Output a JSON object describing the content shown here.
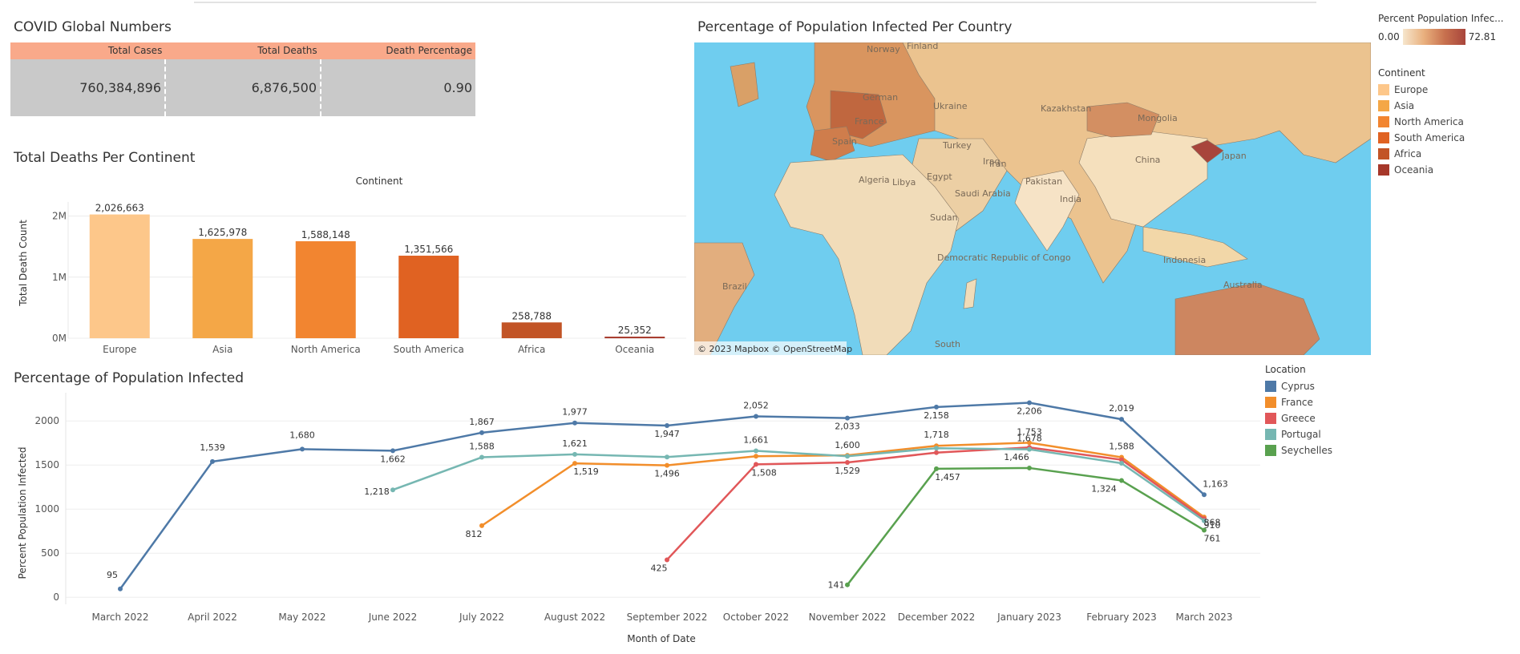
{
  "global_numbers": {
    "title": "COVID Global Numbers",
    "headers": [
      "Total Cases",
      "Total Deaths",
      "Death Percentage"
    ],
    "values": [
      "760,384,896",
      "6,876,500",
      "0.90"
    ]
  },
  "map": {
    "title": "Percentage of Population Infected Per Country",
    "legend_title": "Percent Population Infec...",
    "range_min": "0.00",
    "range_max": "72.81",
    "labels": [
      "Norway",
      "Finland",
      "German",
      "France",
      "Spain",
      "Ukraine",
      "Turkey",
      "Iraq",
      "Iran",
      "Kazakhstan",
      "Mongolia",
      "China",
      "Japan",
      "Pakistan",
      "India",
      "Saudi Arabia",
      "Egypt",
      "Libya",
      "Algeria",
      "Sudan",
      "Democratic Republic of Congo",
      "Brazil",
      "Indonesia",
      "Australia",
      "South"
    ],
    "attribution": "© 2023 Mapbox  © OpenStreetMap",
    "colors": {
      "ocean": "#6fcdef",
      "land": "#ead2ad",
      "low": "#f2dfbd",
      "high": "#a8453c"
    }
  },
  "continent_legend": {
    "title": "Continent",
    "items": [
      {
        "label": "Europe",
        "color": "#fdc78a"
      },
      {
        "label": "Asia",
        "color": "#f4a747"
      },
      {
        "label": "North America",
        "color": "#f28530"
      },
      {
        "label": "South America",
        "color": "#e06222"
      },
      {
        "label": "Africa",
        "color": "#c25426"
      },
      {
        "label": "Oceania",
        "color": "#a6382a"
      }
    ]
  },
  "location_legend": {
    "title": "Location",
    "items": [
      {
        "label": "Cyprus",
        "color": "#4e79a7"
      },
      {
        "label": "France",
        "color": "#f28e2b"
      },
      {
        "label": "Greece",
        "color": "#e15759"
      },
      {
        "label": "Portugal",
        "color": "#76b7b2"
      },
      {
        "label": "Seychelles",
        "color": "#59a14f"
      }
    ]
  },
  "chart_data": [
    {
      "type": "bar",
      "title": "Total Deaths Per Continent",
      "header": "Continent",
      "ylabel": "Total Death Count",
      "xlabel": "",
      "categories": [
        "Europe",
        "Asia",
        "North America",
        "South America",
        "Africa",
        "Oceania"
      ],
      "values": [
        2026663,
        1625978,
        1588148,
        1351566,
        258788,
        25352
      ],
      "value_labels": [
        "2,026,663",
        "1,625,978",
        "1,588,148",
        "1,351,566",
        "258,788",
        "25,352"
      ],
      "colors": [
        "#fdc78a",
        "#f4a747",
        "#f28530",
        "#e06222",
        "#c25426",
        "#a6382a"
      ],
      "yticks": [
        "0M",
        "1M",
        "2M"
      ],
      "ylim": [
        0,
        2100000
      ],
      "grid": true
    },
    {
      "type": "line",
      "title": "Percentage of Population Infected",
      "xlabel": "Month of Date",
      "ylabel": "Percent Population Infected",
      "x": [
        "March 2022",
        "April 2022",
        "May 2022",
        "June 2022",
        "July 2022",
        "August 2022",
        "September 2022",
        "October 2022",
        "November 2022",
        "December 2022",
        "January 2023",
        "February 2023",
        "March 2023"
      ],
      "yticks": [
        "0",
        "500",
        "1000",
        "1500",
        "2000"
      ],
      "ylim": [
        -80,
        2320
      ],
      "grid": true,
      "series": [
        {
          "name": "Cyprus",
          "color": "#4e79a7",
          "values": [
            95,
            1539,
            1680,
            1662,
            1867,
            1977,
            1947,
            2052,
            2033,
            2158,
            2206,
            2019,
            1163
          ],
          "labels": [
            "95",
            "1,539",
            "1,680",
            "1,662",
            "1,867",
            "1,977",
            "1,947",
            "2,052",
            "2,033",
            "2,158",
            "2,206",
            "2,019",
            "1,163"
          ]
        },
        {
          "name": "France",
          "color": "#f28e2b",
          "values": [
            null,
            null,
            null,
            null,
            812,
            1519,
            1496,
            1600,
            1610,
            1718,
            1753,
            1588,
            910
          ],
          "labels": [
            null,
            null,
            null,
            null,
            "812",
            "1,519",
            "1,496",
            null,
            null,
            "1,718",
            "1,753",
            "1,588",
            "910"
          ]
        },
        {
          "name": "Greece",
          "color": "#e15759",
          "values": [
            null,
            null,
            null,
            null,
            null,
            null,
            425,
            1508,
            1529,
            1640,
            1700,
            1560,
            890
          ],
          "labels": [
            null,
            null,
            null,
            null,
            null,
            null,
            "425",
            "1,508",
            "1,529",
            null,
            null,
            null,
            null
          ]
        },
        {
          "name": "Portugal",
          "color": "#76b7b2",
          "values": [
            null,
            null,
            null,
            1218,
            1588,
            1621,
            1590,
            1661,
            1600,
            1690,
            1678,
            1520,
            868
          ],
          "labels": [
            null,
            null,
            null,
            "1,218",
            "1,588",
            "1,621",
            null,
            "1,661",
            "1,600",
            null,
            "1,678",
            null,
            "868"
          ]
        },
        {
          "name": "Seychelles",
          "color": "#59a14f",
          "values": [
            null,
            null,
            null,
            null,
            null,
            null,
            null,
            null,
            141,
            1457,
            1466,
            1324,
            761
          ],
          "labels": [
            null,
            null,
            null,
            null,
            null,
            null,
            null,
            null,
            "141",
            "1,457",
            "1,466",
            "1,324",
            "761"
          ]
        }
      ]
    }
  ]
}
